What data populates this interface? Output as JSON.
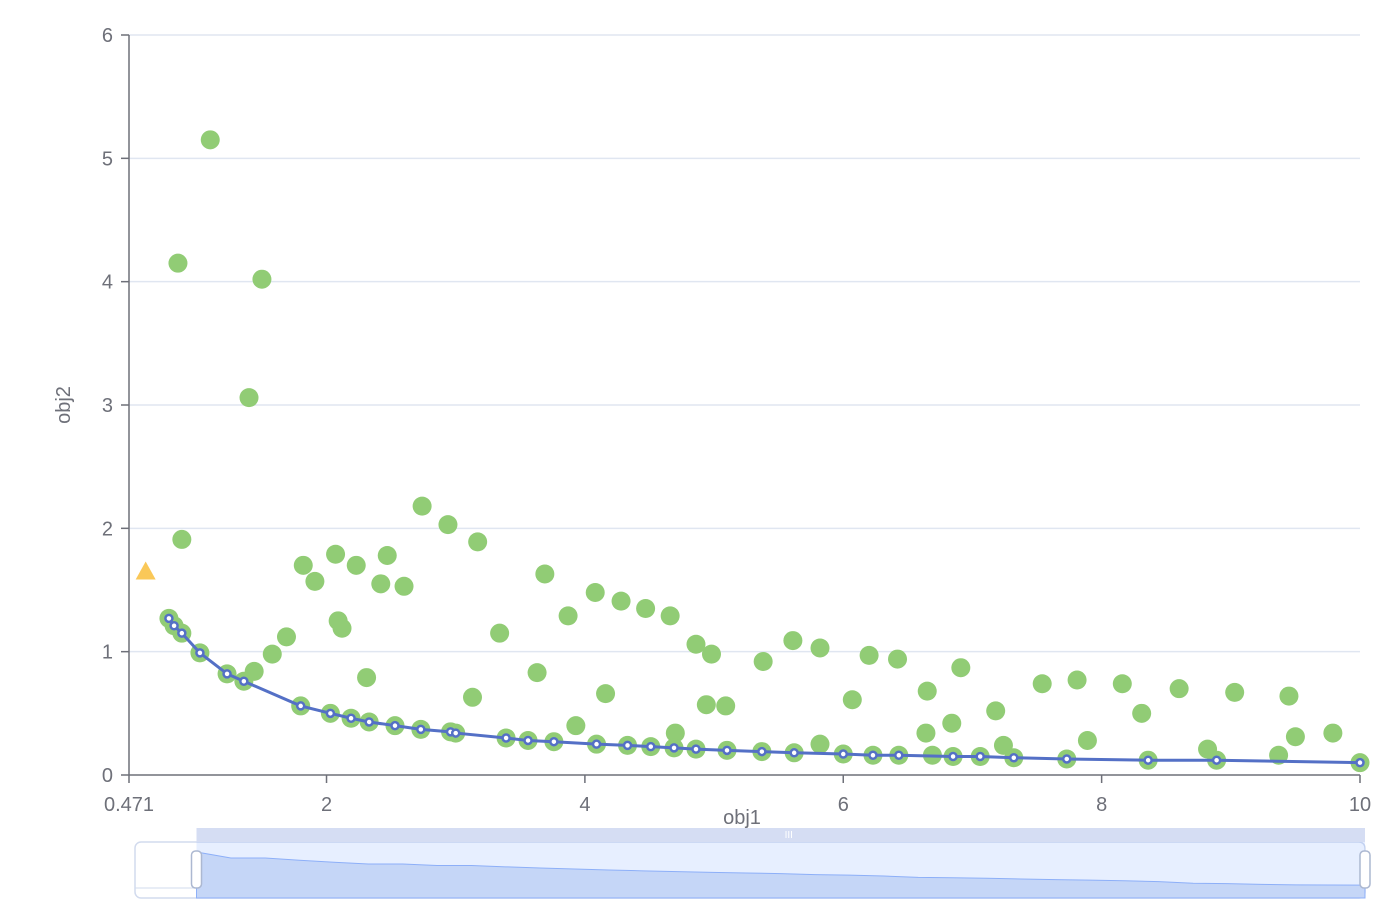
{
  "chart_data": {
    "type": "scatter",
    "title": "",
    "xlabel": "obj1",
    "ylabel": "obj2",
    "xlim": [
      0.471,
      10
    ],
    "ylim": [
      0,
      6
    ],
    "x_ticks": [
      "0.471",
      "2",
      "4",
      "6",
      "8",
      "10"
    ],
    "y_ticks": [
      "0",
      "1",
      "2",
      "3",
      "4",
      "5",
      "6"
    ],
    "grid": true,
    "legend": "none",
    "colors": {
      "population": "#91cc75",
      "front_line": "#5470c6",
      "front_point_fill": "#ffffff",
      "marker": "#fac858",
      "grid": "#e0e6f1",
      "axis": "#6e7079"
    },
    "series": [
      {
        "kind": "scatter",
        "points": [
          [
            1.1,
            5.15
          ],
          [
            0.85,
            4.15
          ],
          [
            1.5,
            4.02
          ],
          [
            1.4,
            3.06
          ],
          [
            0.88,
            1.91
          ],
          [
            2.74,
            2.18
          ],
          [
            2.94,
            2.03
          ],
          [
            3.17,
            1.89
          ],
          [
            1.82,
            1.7
          ],
          [
            2.07,
            1.79
          ],
          [
            2.23,
            1.7
          ],
          [
            2.47,
            1.78
          ],
          [
            1.91,
            1.57
          ],
          [
            2.42,
            1.55
          ],
          [
            2.6,
            1.53
          ],
          [
            3.69,
            1.63
          ],
          [
            4.08,
            1.48
          ],
          [
            4.28,
            1.41
          ],
          [
            4.47,
            1.35
          ],
          [
            4.66,
            1.29
          ],
          [
            3.87,
            1.29
          ],
          [
            2.09,
            1.25
          ],
          [
            2.12,
            1.19
          ],
          [
            1.69,
            1.12
          ],
          [
            3.34,
            1.15
          ],
          [
            1.58,
            0.98
          ],
          [
            4.86,
            1.06
          ],
          [
            4.98,
            0.98
          ],
          [
            5.38,
            0.92
          ],
          [
            5.61,
            1.09
          ],
          [
            5.82,
            1.03
          ],
          [
            6.2,
            0.97
          ],
          [
            6.42,
            0.94
          ],
          [
            1.44,
            0.84
          ],
          [
            3.63,
            0.83
          ],
          [
            2.31,
            0.79
          ],
          [
            6.91,
            0.87
          ],
          [
            6.65,
            0.68
          ],
          [
            4.16,
            0.66
          ],
          [
            3.13,
            0.63
          ],
          [
            6.07,
            0.61
          ],
          [
            7.54,
            0.74
          ],
          [
            7.81,
            0.77
          ],
          [
            8.16,
            0.74
          ],
          [
            8.6,
            0.7
          ],
          [
            9.03,
            0.67
          ],
          [
            9.45,
            0.64
          ],
          [
            4.94,
            0.57
          ],
          [
            5.09,
            0.56
          ],
          [
            7.18,
            0.52
          ],
          [
            8.31,
            0.5
          ],
          [
            6.84,
            0.42
          ],
          [
            3.93,
            0.4
          ],
          [
            4.7,
            0.34
          ],
          [
            6.64,
            0.34
          ],
          [
            9.79,
            0.34
          ],
          [
            9.5,
            0.31
          ],
          [
            7.89,
            0.28
          ],
          [
            5.82,
            0.25
          ],
          [
            7.24,
            0.24
          ],
          [
            8.82,
            0.21
          ],
          [
            9.37,
            0.16
          ],
          [
            6.69,
            0.16
          ]
        ]
      },
      {
        "kind": "line",
        "points": [
          [
            0.78,
            1.27
          ],
          [
            0.82,
            1.21
          ],
          [
            0.88,
            1.15
          ],
          [
            1.02,
            0.99
          ],
          [
            1.23,
            0.82
          ],
          [
            1.36,
            0.76
          ],
          [
            1.8,
            0.56
          ],
          [
            2.03,
            0.5
          ],
          [
            2.19,
            0.46
          ],
          [
            2.33,
            0.43
          ],
          [
            2.53,
            0.4
          ],
          [
            2.73,
            0.37
          ],
          [
            2.96,
            0.35
          ],
          [
            3.0,
            0.34
          ],
          [
            3.39,
            0.3
          ],
          [
            3.56,
            0.28
          ],
          [
            3.76,
            0.27
          ],
          [
            4.09,
            0.25
          ],
          [
            4.33,
            0.24
          ],
          [
            4.51,
            0.23
          ],
          [
            4.69,
            0.22
          ],
          [
            4.86,
            0.21
          ],
          [
            5.1,
            0.2
          ],
          [
            5.37,
            0.19
          ],
          [
            5.62,
            0.18
          ],
          [
            6.0,
            0.17
          ],
          [
            6.23,
            0.16
          ],
          [
            6.43,
            0.16
          ],
          [
            6.85,
            0.15
          ],
          [
            7.06,
            0.15
          ],
          [
            7.32,
            0.14
          ],
          [
            7.73,
            0.13
          ],
          [
            8.36,
            0.12
          ],
          [
            8.89,
            0.12
          ],
          [
            10.0,
            0.1
          ]
        ]
      },
      {
        "kind": "marker",
        "points": [
          [
            0.6,
            1.65
          ]
        ]
      }
    ],
    "datazoom": {
      "range": [
        0.471,
        10
      ],
      "window": [
        0.05,
        1.0
      ],
      "handle_label": "III"
    }
  }
}
